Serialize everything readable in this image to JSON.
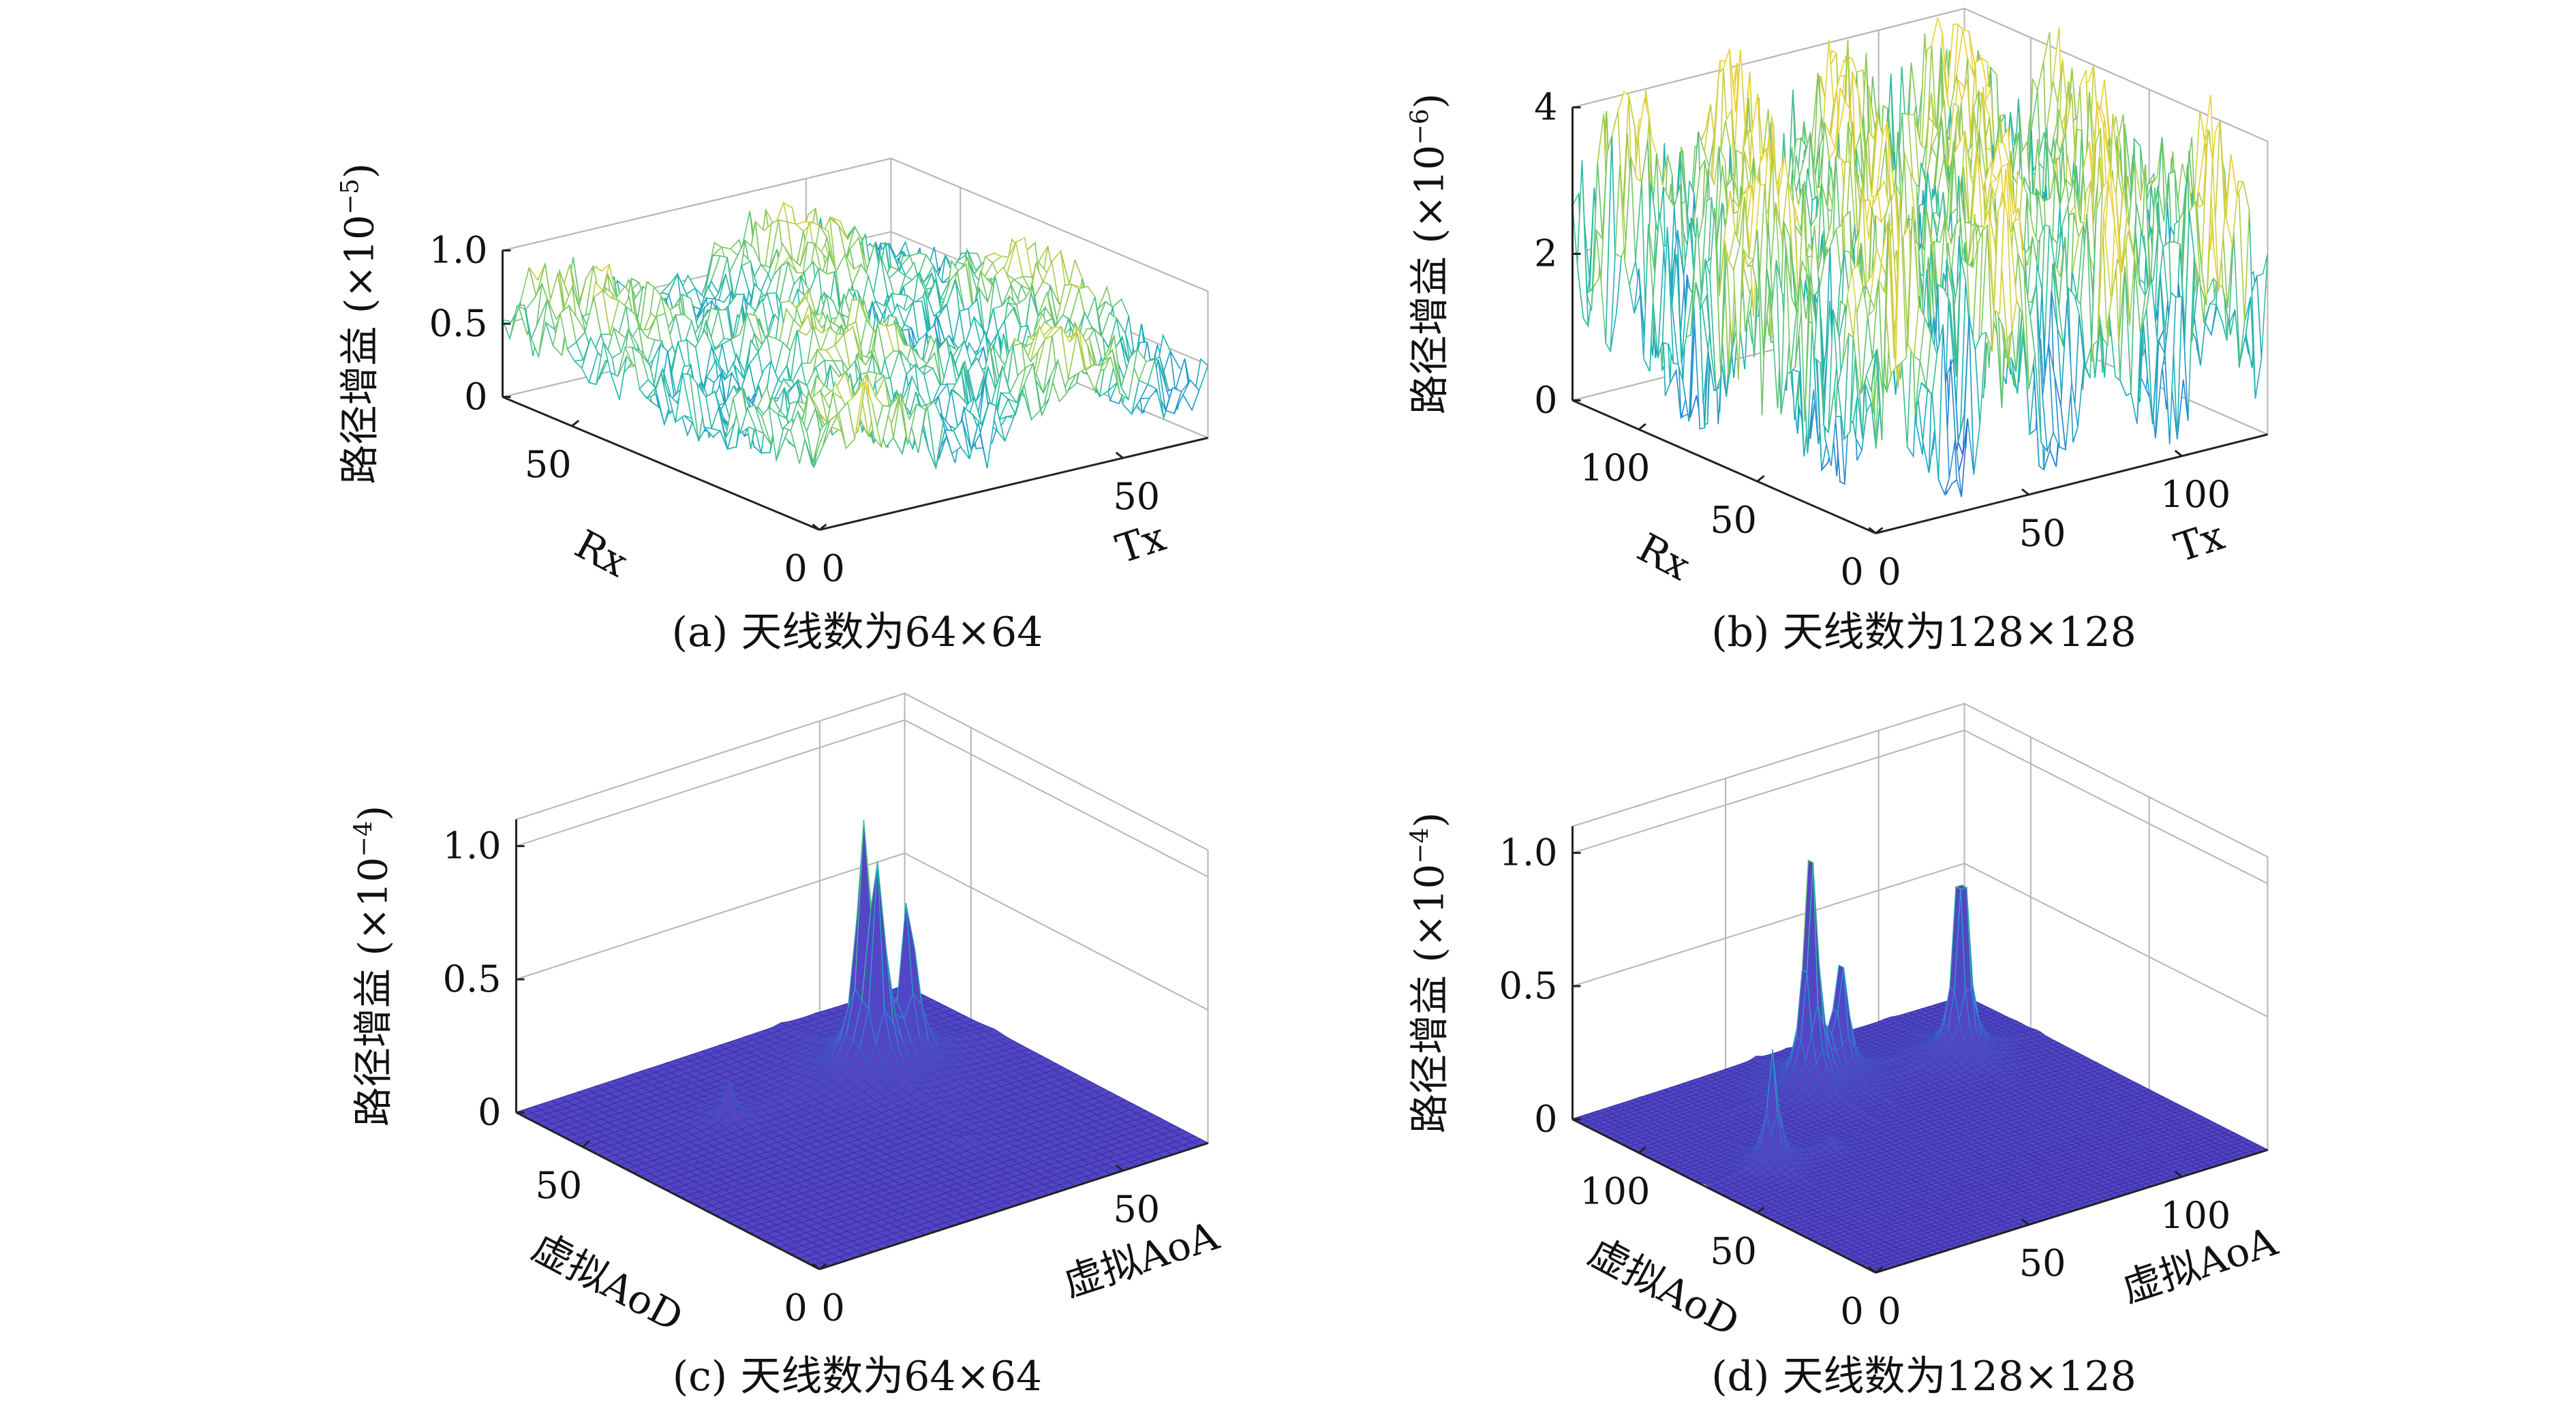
{
  "chart_data": [
    {
      "id": "a",
      "type": "surface3d",
      "surface_kind": "noise",
      "caption": "(a) 天线数为64×64",
      "zlabel": "路径增益",
      "zscale": "(×10",
      "zexp": "−5",
      "zscale_close": ")",
      "xlabel": "Tx",
      "ylabel": "Rx",
      "x_ticks": [
        0,
        50
      ],
      "x_tick_labels": [
        "0",
        "50"
      ],
      "y_ticks": [
        0,
        50
      ],
      "y_tick_labels": [
        "0",
        "50"
      ],
      "z_ticks": [
        0,
        0.5,
        1.0
      ],
      "z_tick_labels": [
        "0",
        "0.5",
        "1.0"
      ],
      "xlim": [
        0,
        64
      ],
      "ylim": [
        0,
        64
      ],
      "zlim": [
        0,
        1.0
      ],
      "value_range": [
        0.15,
        0.95
      ],
      "colormap": [
        "#3e2fa8",
        "#2a8ad8",
        "#1fb8b0",
        "#7cc85f",
        "#e7d23a"
      ]
    },
    {
      "id": "b",
      "type": "surface3d",
      "surface_kind": "noise",
      "caption": "(b) 天线数为128×128",
      "zlabel": "路径增益",
      "zscale": "(×10",
      "zexp": "−6",
      "zscale_close": ")",
      "xlabel": "Tx",
      "ylabel": "Rx",
      "x_ticks": [
        0,
        50,
        100
      ],
      "x_tick_labels": [
        "0",
        "50",
        "100"
      ],
      "y_ticks": [
        0,
        50,
        100
      ],
      "y_tick_labels": [
        "0",
        "50",
        "100"
      ],
      "z_ticks": [
        0,
        2,
        4
      ],
      "z_tick_labels": [
        "0",
        "2",
        "4"
      ],
      "xlim": [
        0,
        128
      ],
      "ylim": [
        0,
        128
      ],
      "zlim": [
        0,
        4
      ],
      "value_range": [
        0.2,
        4.6
      ],
      "colormap": [
        "#3e2fa8",
        "#2a8ad8",
        "#1fb8b0",
        "#7cc85f",
        "#e7d23a"
      ]
    },
    {
      "id": "c",
      "type": "surface3d",
      "surface_kind": "peaks",
      "caption": "(c) 天线数为64×64",
      "zlabel": "路径增益",
      "zscale": "(×10",
      "zexp": "−4",
      "zscale_close": ")",
      "xlabel": "虚拟AoA",
      "ylabel": "虚拟AoD",
      "x_ticks": [
        0,
        50
      ],
      "x_tick_labels": [
        "0",
        "50"
      ],
      "y_ticks": [
        0,
        50
      ],
      "y_tick_labels": [
        "0",
        "50"
      ],
      "z_ticks": [
        0,
        0.5,
        1.0
      ],
      "z_tick_labels": [
        "0",
        "0.5",
        "1.0"
      ],
      "xlim": [
        0,
        64
      ],
      "ylim": [
        0,
        64
      ],
      "zlim": [
        0,
        1.1
      ],
      "peaks": [
        {
          "x": 44,
          "y": 47,
          "z": 1.05
        },
        {
          "x": 44,
          "y": 44,
          "z": 0.85
        },
        {
          "x": 50,
          "y": 45,
          "z": 0.68
        },
        {
          "x": 20,
          "y": 45,
          "z": 0.15
        },
        {
          "x": 40,
          "y": 20,
          "z": 0.03
        }
      ],
      "colormap": [
        "#3e2fa8",
        "#2a8ad8",
        "#1fb8b0",
        "#7cc85f",
        "#e7d23a"
      ]
    },
    {
      "id": "d",
      "type": "surface3d",
      "surface_kind": "peaks",
      "caption": "(d) 天线数为128×128",
      "zlabel": "路径增益",
      "zscale": "(×10",
      "zexp": "−4",
      "zscale_close": ")",
      "xlabel": "虚拟AoA",
      "ylabel": "虚拟AoD",
      "x_ticks": [
        0,
        50,
        100
      ],
      "x_tick_labels": [
        "0",
        "50",
        "100"
      ],
      "y_ticks": [
        0,
        50,
        100
      ],
      "y_tick_labels": [
        "0",
        "50",
        "100"
      ],
      "z_ticks": [
        0,
        0.5,
        1.0
      ],
      "z_tick_labels": [
        "0",
        "0.5",
        "1.0"
      ],
      "xlim": [
        0,
        128
      ],
      "ylim": [
        0,
        128
      ],
      "zlim": [
        0,
        1.1
      ],
      "peaks": [
        {
          "x": 60,
          "y": 105,
          "z": 1.0
        },
        {
          "x": 103,
          "y": 97,
          "z": 0.95
        },
        {
          "x": 70,
          "y": 105,
          "z": 0.45
        },
        {
          "x": 22,
          "y": 72,
          "z": 0.4
        },
        {
          "x": 40,
          "y": 70,
          "z": 0.05
        }
      ],
      "colormap": [
        "#3e2fa8",
        "#2a8ad8",
        "#1fb8b0",
        "#7cc85f",
        "#e7d23a"
      ]
    }
  ]
}
